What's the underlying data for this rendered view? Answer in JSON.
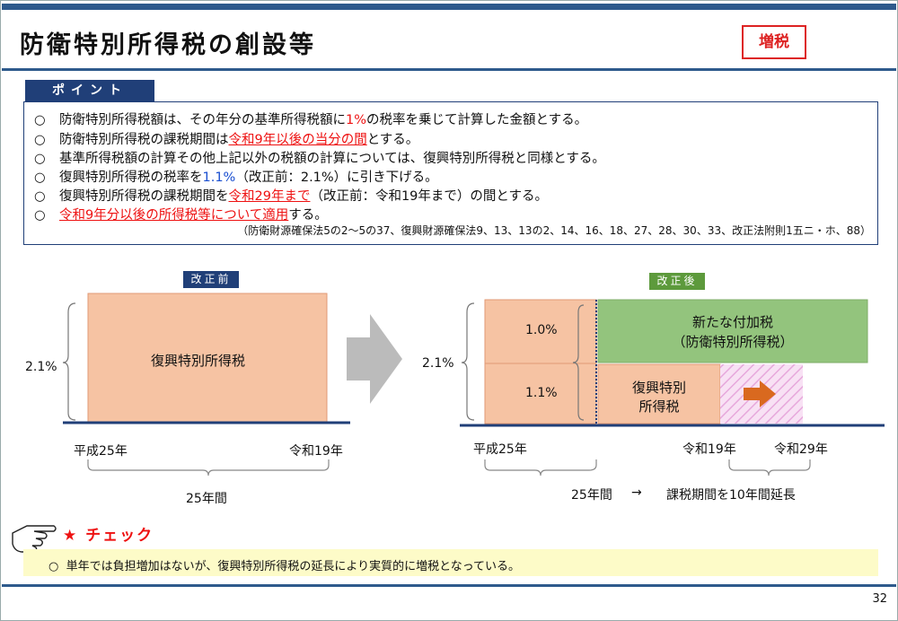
{
  "header": {
    "title": "防衛特別所得税の創設等",
    "badge": "増税"
  },
  "point": {
    "tab_label": "ポイント",
    "bullet": "○",
    "lines": [
      {
        "a": "防衛特別所得税額は、その年分の基準所得税額に",
        "b": "1%",
        "c": "の税率を乗じて計算した金額とする。"
      },
      {
        "a": "防衛特別所得税の課税期間は",
        "b": "令和9年以後の当分の間",
        "c": "とする。"
      },
      {
        "a": "基準所得税額の計算その他上記以外の税額の計算については、復興特別所得税と同様とする。"
      },
      {
        "a": "復興特別所得税の税率を",
        "b": "1.1%",
        "c": "（改正前：2.1%）に引き下げる。"
      },
      {
        "a": "復興特別所得税の課税期間を",
        "b": "令和29年まで",
        "c": "（改正前：令和19年まで）の間とする。"
      },
      {
        "b": "令和9年分以後の所得税等について適用",
        "c": "する。"
      }
    ],
    "legal_ref": "（防衛財源確保法5の2～5の37、復興財源確保法9、13、13の2、14、16、18、27、28、30、33、改正法附則1五ニ・ホ、88）"
  },
  "before": {
    "label": "改正前",
    "rate": "2.1%",
    "tax_name": "復興特別所得税",
    "start": "平成25年",
    "end": "令和19年",
    "duration": "25年間"
  },
  "after": {
    "label": "改正後",
    "total_rate": "2.1%",
    "upper_rate": "1.0%",
    "lower_rate": "1.1%",
    "new_tax_line1": "新たな付加税",
    "new_tax_line2": "（防衛特別所得税）",
    "reconstruction_line1": "復興特別",
    "reconstruction_line2": "所得税",
    "start": "平成25年",
    "mid": "令和19年",
    "end": "令和29年",
    "duration": "25年間",
    "arrow": "→",
    "extension": "課税期間を10年間延長"
  },
  "check": {
    "title": "★ チェック",
    "bullet": "○",
    "text": "単年では負担増加はないが、復興特別所得税の延長により実質的に増税となっている。"
  },
  "page_number": "32",
  "colors": {
    "navy": "#203f78",
    "header_blue": "#2e5a8c",
    "red": "#e11e1e",
    "rate_blue": "#1a4fd0",
    "peach": "#f6c3a3",
    "green": "#93c47d",
    "label_green": "#5d9a3c",
    "gray_arrow": "#bbbbbb",
    "pink_hatch": "#f0c4e8",
    "orange_arrow": "#d9691f",
    "check_bg": "#fdfbc8"
  }
}
